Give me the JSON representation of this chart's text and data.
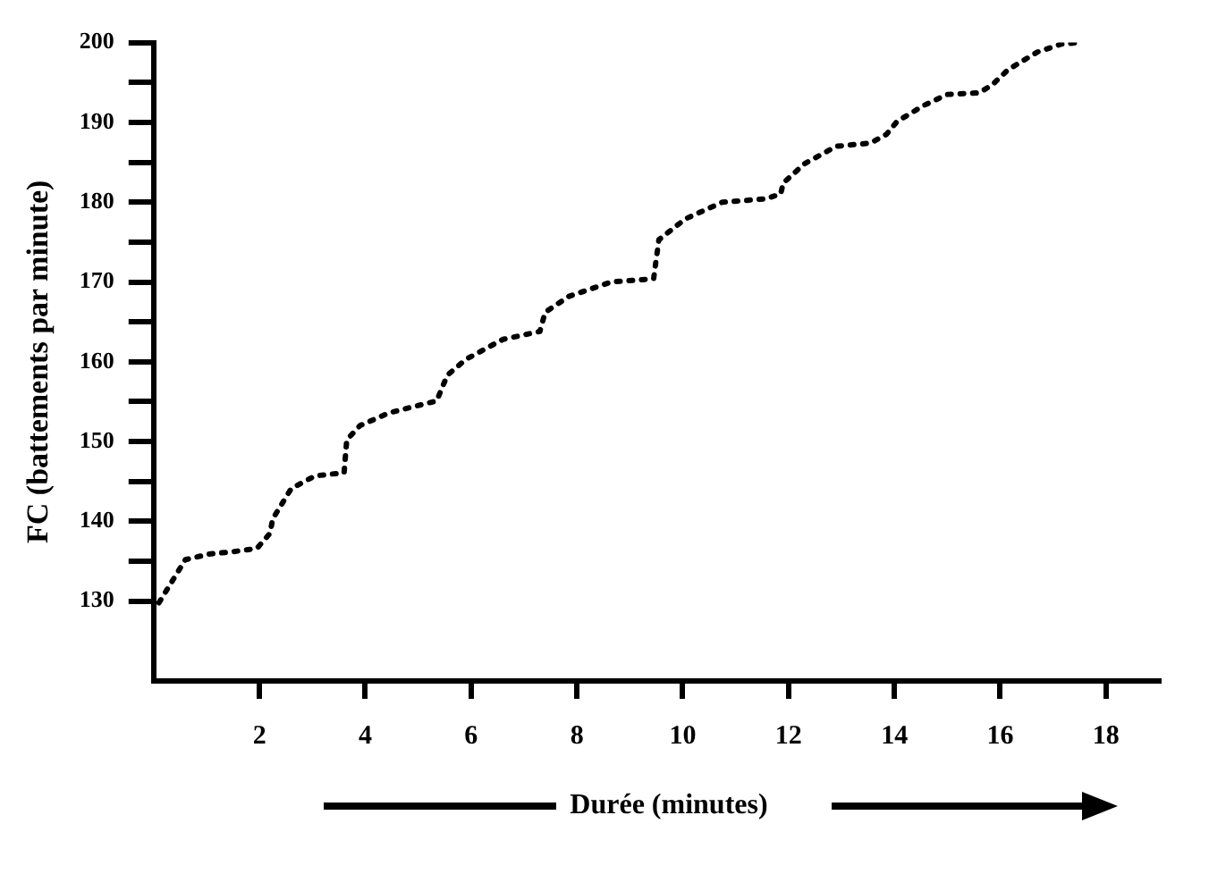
{
  "chart_data": {
    "type": "line",
    "xlabel": "Durée (minutes)",
    "ylabel": "FC (battements par minute)",
    "xlim": [
      0,
      19
    ],
    "xticks": [
      2,
      4,
      6,
      8,
      10,
      12,
      14,
      16,
      18
    ],
    "ylim": [
      120,
      200
    ],
    "yticks": [
      130,
      {
        "value": 135,
        "label": null
      },
      140,
      {
        "value": 145,
        "label": null
      },
      150,
      {
        "value": 155,
        "label": null
      },
      160,
      {
        "value": 165,
        "label": null
      },
      170,
      {
        "value": 175,
        "label": null
      },
      180,
      {
        "value": 185,
        "label": null
      },
      190,
      {
        "value": 195,
        "label": null
      },
      200
    ],
    "grid": false,
    "legend": false,
    "marker": "none",
    "line_style": "dotted",
    "series": [
      {
        "color": "#000000",
        "x": [
          0.1,
          0.6,
          1.05,
          1.5,
          1.95,
          2.2,
          2.25,
          2.6,
          3.05,
          3.6,
          3.65,
          3.9,
          4.45,
          5.35,
          5.55,
          5.9,
          6.6,
          7.3,
          7.4,
          7.85,
          8.65,
          9.45,
          9.5,
          9.55,
          10.05,
          10.75,
          11.55,
          11.85,
          11.9,
          12.3,
          12.9,
          13.55,
          13.85,
          14.05,
          14.55,
          15.0,
          15.6,
          15.85,
          16.15,
          16.7,
          17.15,
          17.5
        ],
        "values": [
          129.8,
          135.2,
          135.9,
          136.2,
          136.6,
          138.5,
          140.3,
          144.1,
          145.7,
          146.1,
          150.2,
          152.0,
          153.6,
          155.1,
          158.3,
          160.3,
          162.8,
          163.8,
          166.2,
          168.2,
          170.0,
          170.4,
          172.9,
          175.3,
          177.9,
          180.0,
          180.4,
          181.0,
          182.4,
          184.8,
          187.0,
          187.4,
          188.5,
          190.1,
          192.1,
          193.5,
          193.7,
          194.7,
          196.6,
          198.8,
          199.8,
          200
        ]
      }
    ]
  }
}
